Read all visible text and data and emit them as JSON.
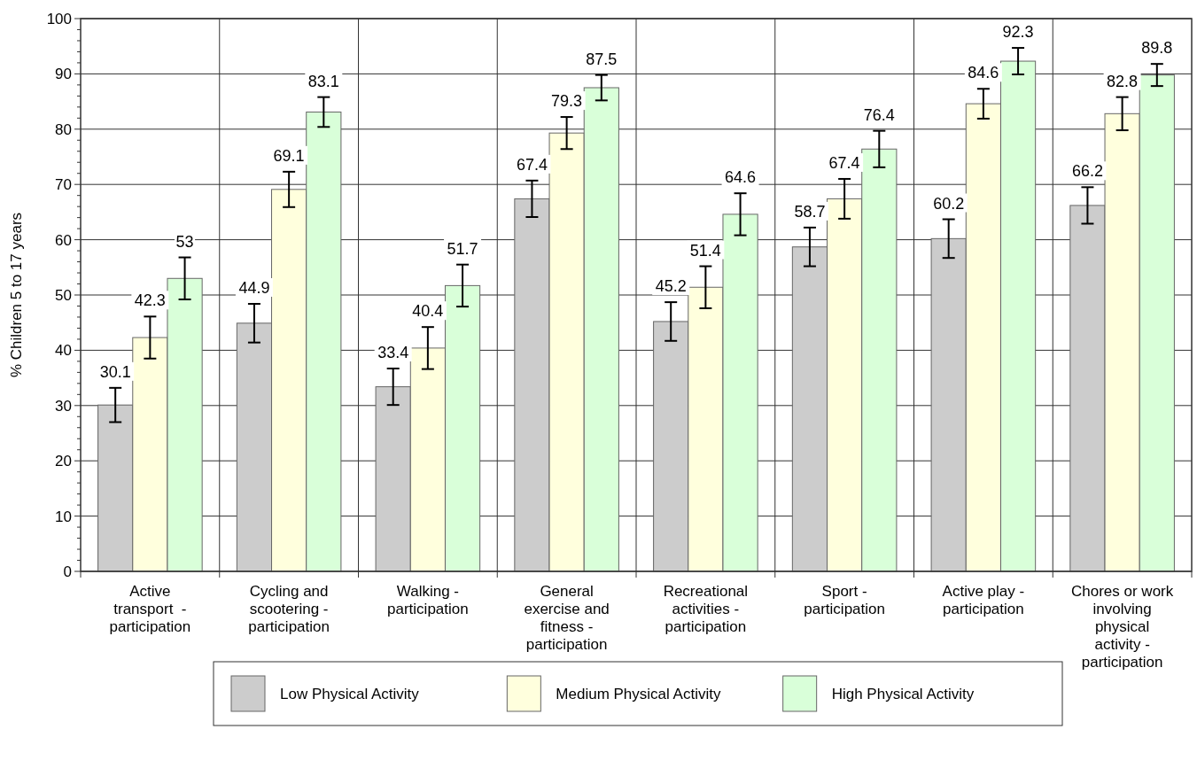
{
  "chart_data": {
    "type": "bar",
    "ylabel": "% Children 5 to 17 years",
    "categories": [
      "Active transport  - participation",
      "Cycling and scootering - participation",
      "Walking - participation",
      "General exercise and fitness - participation",
      "Recreational activities - participation",
      "Sport - participation",
      "Active play - participation",
      "Chores or work involving physical activity - participation"
    ],
    "series": [
      {
        "name": "Low Physical Activity",
        "color": "#cccccc",
        "values": [
          30.1,
          44.9,
          33.4,
          67.4,
          45.2,
          58.7,
          60.2,
          66.2
        ],
        "errors": [
          3.1,
          3.5,
          3.3,
          3.3,
          3.5,
          3.5,
          3.5,
          3.3
        ]
      },
      {
        "name": "Medium Physical Activity",
        "color": "#ffffdd",
        "values": [
          42.3,
          69.1,
          40.4,
          79.3,
          51.4,
          67.4,
          84.6,
          82.8
        ],
        "errors": [
          3.8,
          3.2,
          3.8,
          2.9,
          3.8,
          3.6,
          2.7,
          3.0
        ]
      },
      {
        "name": "High Physical Activity",
        "color": "#d9ffd9",
        "values": [
          53,
          83.1,
          51.7,
          87.5,
          64.6,
          76.4,
          92.3,
          89.8
        ],
        "errors": [
          3.8,
          2.7,
          3.8,
          2.3,
          3.8,
          3.3,
          2.4,
          2.0
        ]
      }
    ],
    "ylim": [
      0,
      100
    ],
    "yticks": [
      0,
      {
        "value": 2,
        "label": null
      },
      {
        "value": 4,
        "label": null
      },
      {
        "value": 6,
        "label": null
      },
      {
        "value": 8,
        "label": null
      },
      10,
      {
        "value": 12,
        "label": null
      },
      {
        "value": 14,
        "label": null
      },
      {
        "value": 16,
        "label": null
      },
      {
        "value": 18,
        "label": null
      },
      20,
      {
        "value": 22,
        "label": null
      },
      {
        "value": 24,
        "label": null
      },
      {
        "value": 26,
        "label": null
      },
      {
        "value": 28,
        "label": null
      },
      30,
      {
        "value": 32,
        "label": null
      },
      {
        "value": 34,
        "label": null
      },
      {
        "value": 36,
        "label": null
      },
      {
        "value": 38,
        "label": null
      },
      40,
      {
        "value": 42,
        "label": null
      },
      {
        "value": 44,
        "label": null
      },
      {
        "value": 46,
        "label": null
      },
      {
        "value": 48,
        "label": null
      },
      50,
      {
        "value": 52,
        "label": null
      },
      {
        "value": 54,
        "label": null
      },
      {
        "value": 56,
        "label": null
      },
      {
        "value": 58,
        "label": null
      },
      60,
      {
        "value": 62,
        "label": null
      },
      {
        "value": 64,
        "label": null
      },
      {
        "value": 66,
        "label": null
      },
      {
        "value": 68,
        "label": null
      },
      70,
      {
        "value": 72,
        "label": null
      },
      {
        "value": 74,
        "label": null
      },
      {
        "value": 76,
        "label": null
      },
      {
        "value": 78,
        "label": null
      },
      80,
      {
        "value": 82,
        "label": null
      },
      {
        "value": 84,
        "label": null
      },
      {
        "value": 86,
        "label": null
      },
      {
        "value": 88,
        "label": null
      },
      90,
      {
        "value": 92,
        "label": null
      },
      {
        "value": 94,
        "label": null
      },
      {
        "value": 96,
        "label": null
      },
      {
        "value": 98,
        "label": null
      },
      100
    ],
    "grid": true,
    "legend": "bottom",
    "data_labels": true
  }
}
